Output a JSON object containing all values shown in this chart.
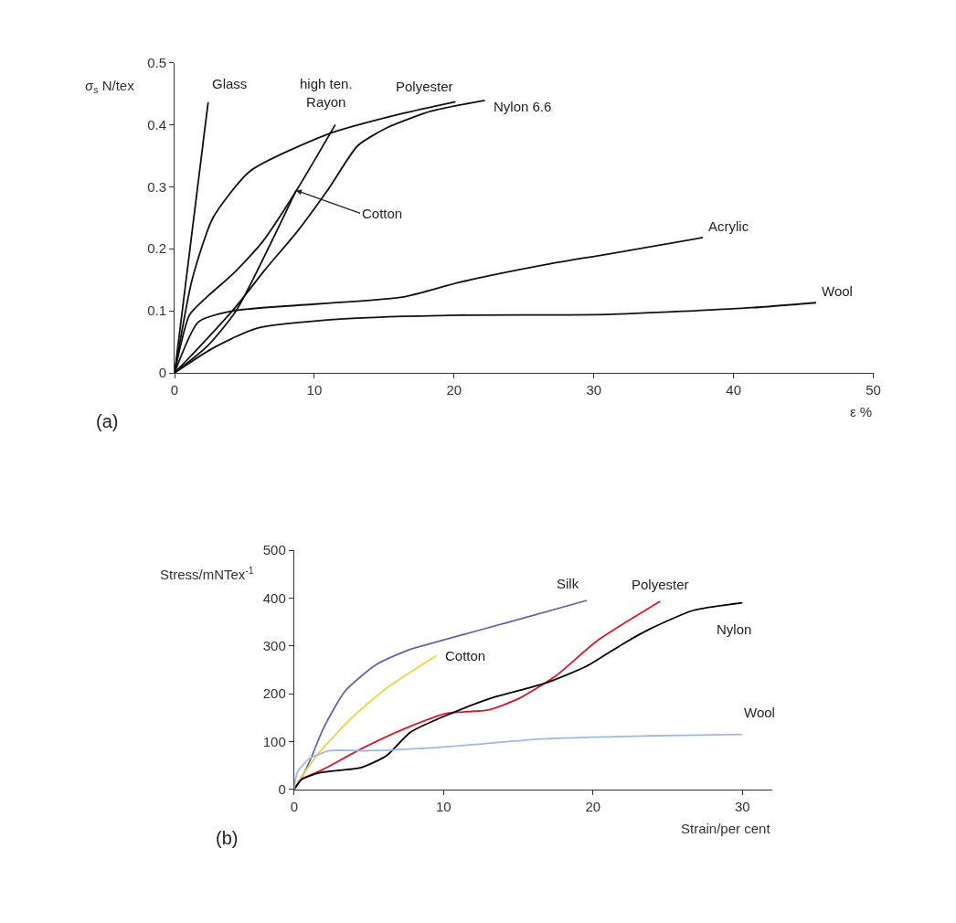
{
  "chart_data": [
    {
      "type": "line",
      "title": "(a)",
      "xlabel": "ε %",
      "ylabel": "σ$_{s}$ N/tex",
      "xlim": [
        0,
        50
      ],
      "ylim": [
        0,
        0.5
      ],
      "xticks": [
        0,
        10,
        20,
        30,
        40,
        50
      ],
      "yticks": [
        0,
        0.1,
        0.2,
        0.3,
        0.4,
        0.5
      ],
      "marker": "none",
      "line_style": "solid",
      "series": [
        {
          "name": "Glass",
          "color": "#111111",
          "x": [
            0,
            2.4
          ],
          "values": [
            0,
            0.436
          ]
        },
        {
          "name": "high ten. Rayon",
          "color": "#111111",
          "x": [
            0,
            1.06,
            2.3,
            4.2,
            6.25,
            8.75,
            11.5
          ],
          "values": [
            0,
            0.093,
            0.122,
            0.16,
            0.21,
            0.295,
            0.4
          ]
        },
        {
          "name": "Polyester",
          "color": "#111111",
          "x": [
            0,
            1.25,
            2.75,
            5.4,
            11,
            16.3,
            20.1
          ],
          "values": [
            0,
            0.15,
            0.25,
            0.325,
            0.385,
            0.418,
            0.437
          ]
        },
        {
          "name": "Nylon 6.6",
          "color": "#111111",
          "x": [
            0,
            1.7,
            4.4,
            6.5,
            8.75,
            11,
            13.1,
            15.2,
            18.4,
            22.2
          ],
          "values": [
            0,
            0.04,
            0.107,
            0.167,
            0.227,
            0.296,
            0.366,
            0.395,
            0.422,
            0.439
          ]
        },
        {
          "name": "Cotton",
          "color": "#111111",
          "x": [
            0,
            2.3,
            4.4,
            8.7
          ],
          "values": [
            0,
            0.042,
            0.1,
            0.294
          ]
        },
        {
          "name": "Acrylic",
          "color": "#111111",
          "x": [
            0,
            1.7,
            4.2,
            16.3,
            20.4,
            26.7,
            30.9,
            37.8
          ],
          "values": [
            0,
            0.082,
            0.1,
            0.122,
            0.146,
            0.175,
            0.191,
            0.218
          ]
        },
        {
          "name": "Wool",
          "color": "#111111",
          "x": [
            0,
            2.75,
            5.9,
            12.1,
            20.4,
            30.9,
            41.3,
            45.9
          ],
          "values": [
            0,
            0.04,
            0.072,
            0.087,
            0.093,
            0.094,
            0.105,
            0.113
          ]
        }
      ]
    },
    {
      "type": "line",
      "title": "(b)",
      "xlabel": "Strain/per cent",
      "ylabel": "Stress/mNTex$^{-1}$",
      "xlim": [
        0,
        32
      ],
      "ylim": [
        0,
        500
      ],
      "xticks": [
        0,
        10,
        20,
        30
      ],
      "yticks": [
        0,
        100,
        200,
        300,
        400,
        500
      ],
      "marker": "none",
      "line_style": "solid",
      "series": [
        {
          "name": "Silk",
          "color": "#6a62a8",
          "x": [
            0,
            0.3,
            1.0,
            1.95,
            3.4,
            5.5,
            7.8,
            10.2,
            14.4,
            19.6
          ],
          "values": [
            0,
            14,
            56,
            127,
            205,
            261,
            293,
            314,
            350,
            395
          ]
        },
        {
          "name": "Cotton",
          "color": "#f0d040",
          "x": [
            0,
            0.3,
            1.7,
            3.8,
            6.2,
            9.5
          ],
          "values": [
            0,
            18,
            78,
            148,
            212,
            279
          ]
        },
        {
          "name": "Polyester",
          "color": "#d7182a",
          "x": [
            0,
            0.5,
            1.95,
            4.5,
            7.4,
            10.2,
            13,
            15.1,
            17.5,
            20.3,
            24.5
          ],
          "values": [
            0,
            21,
            42,
            85,
            127,
            159,
            166,
            191,
            237,
            311,
            393
          ]
        },
        {
          "name": "Nylon",
          "color": "#000000",
          "x": [
            0,
            0.5,
            1.7,
            4.5,
            6.2,
            7.8,
            10.2,
            13.2,
            16.8,
            19.6,
            22,
            23.8,
            26.7,
            30
          ],
          "values": [
            0,
            21,
            35,
            46,
            71,
            120,
            155,
            191,
            222,
            258,
            304,
            335,
            374,
            390
          ]
        },
        {
          "name": "Wool",
          "color": "#9cb8e8",
          "x": [
            0,
            0.2,
            1,
            2.4,
            5,
            9.7,
            16.8,
            23.8,
            30
          ],
          "values": [
            0,
            35,
            64,
            81,
            81,
            88,
            106,
            112,
            115
          ]
        }
      ]
    }
  ]
}
